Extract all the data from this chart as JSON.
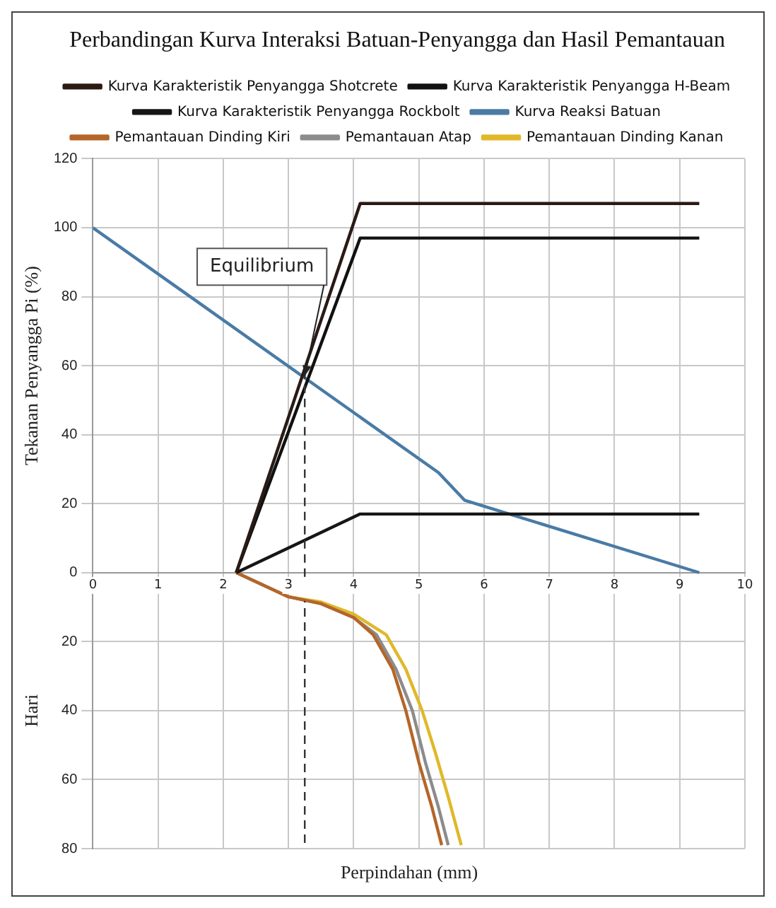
{
  "chart_data": {
    "type": "line",
    "title": "Perbandingan Kurva Interaksi Batuan-Penyangga dan Hasil Pemantauan",
    "xlabel": "Perpindahan (mm)",
    "ylabel": "Tekanan Penyangga Pi (%)",
    "annotations": [
      {
        "text": "Equilibrium",
        "x": 3.25,
        "y": 57
      },
      "Hari"
    ],
    "series": [
      {
        "name": "Kurva Karakteristik Penyangga Shotcrete",
        "color": "#2b1a14",
        "x": [
          2.2,
          4.1,
          9.3
        ],
        "values": [
          0,
          107,
          107
        ]
      },
      {
        "name": "Kurva Karakteristik Penyangga H-Beam",
        "color": "#111111",
        "x": [
          2.2,
          4.1,
          9.3
        ],
        "values": [
          0,
          97,
          97
        ]
      },
      {
        "name": "Kurva Karakteristik Penyangga Rockbolt",
        "color": "#161616",
        "x": [
          2.2,
          4.1,
          9.3
        ],
        "values": [
          0,
          17,
          17
        ]
      },
      {
        "name": "Kurva Reaksi Batuan",
        "color": "#4a7ba6",
        "x": [
          0,
          5.3,
          5.7,
          9.3
        ],
        "values": [
          100,
          29,
          21,
          0
        ]
      },
      {
        "name": "Pemantauan Dinding Kiri",
        "color": "#b5652a",
        "x": [
          2.2,
          3,
          3.5,
          4,
          4.3,
          4.6,
          4.8,
          5,
          5.2,
          5.35
        ],
        "values": [
          0,
          -7,
          -9,
          -13,
          -18,
          -28,
          -40,
          -55,
          -68,
          -79
        ]
      },
      {
        "name": "Pemantauan Atap",
        "color": "#8c8c8c",
        "x": [
          2.2,
          3,
          3.5,
          4,
          4.35,
          4.65,
          4.9,
          5.1,
          5.3,
          5.45
        ],
        "values": [
          0,
          -7,
          -9,
          -13,
          -18,
          -28,
          -40,
          -55,
          -68,
          -79
        ]
      },
      {
        "name": "Pemantauan Dinding Kanan",
        "color": "#e0b829",
        "x": [
          2.2,
          3,
          3.5,
          4,
          4.5,
          4.8,
          5.05,
          5.25,
          5.45,
          5.65
        ],
        "values": [
          0,
          -7,
          -8.5,
          -12,
          -18,
          -28,
          -40,
          -52,
          -65,
          -79
        ]
      }
    ],
    "xlim": [
      0,
      10
    ],
    "xticks": [
      0,
      1,
      2,
      3,
      4,
      5,
      6,
      7,
      8,
      9,
      10
    ],
    "ylim": [
      -80,
      120
    ],
    "yticks": [
      {
        "value": -80,
        "label": "80"
      },
      {
        "value": -60,
        "label": "60"
      },
      {
        "value": -40,
        "label": "40"
      },
      {
        "value": -20,
        "label": "20"
      },
      0,
      20,
      40,
      60,
      80,
      100,
      120
    ],
    "ref_lines": [
      {
        "axis": "x",
        "value": 3.25,
        "color": "#333333",
        "line_style": "dashed"
      }
    ],
    "grid": true,
    "legend": "top",
    "line_style": "solid",
    "marker": "none"
  }
}
